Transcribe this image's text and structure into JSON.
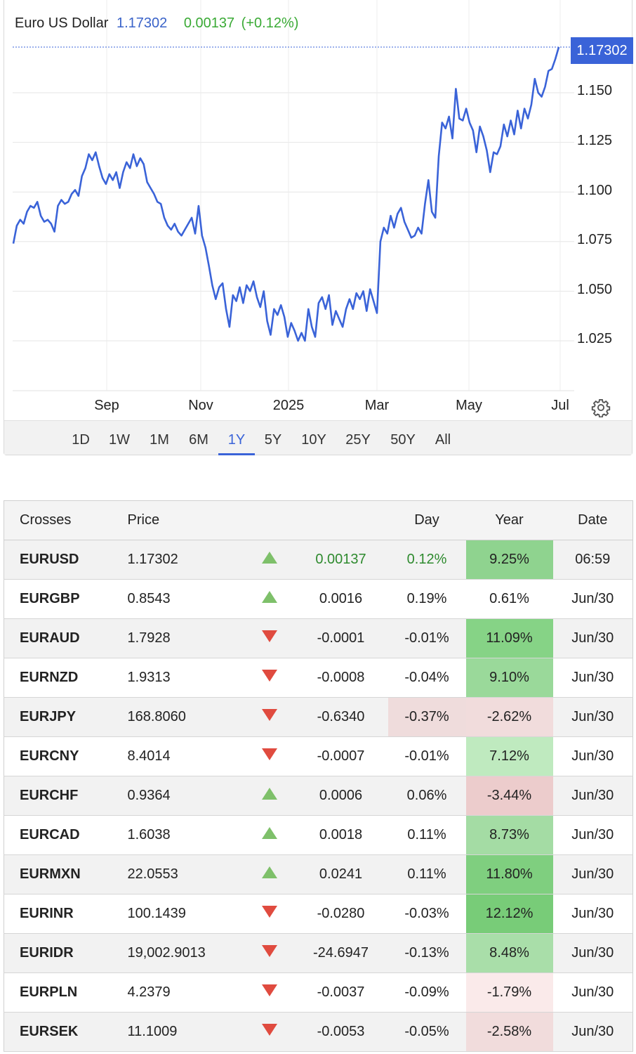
{
  "chart": {
    "name": "Euro US Dollar",
    "last": "1.17302",
    "change": "0.00137",
    "change_pct": "(+0.12%)",
    "price_tag": "1.17302",
    "accent": "#3a63d8",
    "positive_color": "#3aaa35"
  },
  "chart_data": {
    "type": "line",
    "title": "Euro US Dollar",
    "y_ticks": [
      "1.150",
      "1.125",
      "1.100",
      "1.075",
      "1.050",
      "1.025"
    ],
    "x_ticks": [
      "Sep",
      "Nov",
      "2025",
      "Mar",
      "May",
      "Jul"
    ],
    "ylim": [
      1.0,
      1.1775
    ],
    "grid": true,
    "series": [
      {
        "name": "Euro US Dollar",
        "color": "#3a63d8",
        "values": [
          1.074,
          1.083,
          1.086,
          1.084,
          1.09,
          1.093,
          1.092,
          1.095,
          1.088,
          1.085,
          1.086,
          1.084,
          1.08,
          1.093,
          1.096,
          1.094,
          1.095,
          1.099,
          1.101,
          1.098,
          1.108,
          1.112,
          1.119,
          1.116,
          1.12,
          1.113,
          1.107,
          1.104,
          1.109,
          1.106,
          1.11,
          1.102,
          1.11,
          1.115,
          1.112,
          1.119,
          1.113,
          1.117,
          1.114,
          1.105,
          1.102,
          1.099,
          1.095,
          1.094,
          1.087,
          1.083,
          1.081,
          1.084,
          1.08,
          1.078,
          1.081,
          1.084,
          1.087,
          1.079,
          1.093,
          1.078,
          1.072,
          1.063,
          1.053,
          1.046,
          1.052,
          1.054,
          1.041,
          1.032,
          1.048,
          1.045,
          1.052,
          1.044,
          1.053,
          1.05,
          1.055,
          1.047,
          1.042,
          1.05,
          1.035,
          1.028,
          1.041,
          1.038,
          1.043,
          1.037,
          1.027,
          1.034,
          1.03,
          1.025,
          1.029,
          1.025,
          1.041,
          1.032,
          1.027,
          1.044,
          1.047,
          1.041,
          1.048,
          1.033,
          1.04,
          1.036,
          1.032,
          1.041,
          1.046,
          1.041,
          1.049,
          1.046,
          1.05,
          1.04,
          1.051,
          1.045,
          1.039,
          1.075,
          1.082,
          1.079,
          1.088,
          1.082,
          1.089,
          1.092,
          1.085,
          1.081,
          1.077,
          1.078,
          1.082,
          1.079,
          1.094,
          1.106,
          1.09,
          1.087,
          1.118,
          1.135,
          1.132,
          1.138,
          1.127,
          1.152,
          1.137,
          1.136,
          1.142,
          1.135,
          1.131,
          1.12,
          1.133,
          1.128,
          1.121,
          1.11,
          1.12,
          1.119,
          1.123,
          1.134,
          1.128,
          1.136,
          1.129,
          1.141,
          1.132,
          1.142,
          1.137,
          1.144,
          1.157,
          1.15,
          1.148,
          1.153,
          1.161,
          1.162,
          1.167,
          1.173
        ]
      }
    ]
  },
  "ranges": {
    "items": [
      "1D",
      "1W",
      "1M",
      "6M",
      "1Y",
      "5Y",
      "10Y",
      "25Y",
      "50Y",
      "All"
    ],
    "active": "1Y"
  },
  "table": {
    "headers": {
      "symbol": "Crosses",
      "price": "Price",
      "day": "Day",
      "year": "Year",
      "date": "Date"
    },
    "rows": [
      {
        "symbol": "EURUSD",
        "price": "1.17302",
        "dir": "up",
        "change": "0.00137",
        "day_pct": "0.12%",
        "year_pct": "9.25%",
        "date": "06:59",
        "year_bg": "#8fd38f",
        "day_bg": "",
        "highlight": true
      },
      {
        "symbol": "EURGBP",
        "price": "0.8543",
        "dir": "up",
        "change": "0.0016",
        "day_pct": "0.19%",
        "year_pct": "0.61%",
        "date": "Jun/30",
        "year_bg": "",
        "day_bg": ""
      },
      {
        "symbol": "EURAUD",
        "price": "1.7928",
        "dir": "down",
        "change": "-0.0001",
        "day_pct": "-0.01%",
        "year_pct": "11.09%",
        "date": "Jun/30",
        "year_bg": "#86d386",
        "day_bg": ""
      },
      {
        "symbol": "EURNZD",
        "price": "1.9313",
        "dir": "down",
        "change": "-0.0008",
        "day_pct": "-0.04%",
        "year_pct": "9.10%",
        "date": "Jun/30",
        "year_bg": "#9ad99a",
        "day_bg": ""
      },
      {
        "symbol": "EURJPY",
        "price": "168.8060",
        "dir": "down",
        "change": "-0.6340",
        "day_pct": "-0.37%",
        "year_pct": "-2.62%",
        "date": "Jun/30",
        "year_bg": "#f1dcdc",
        "day_bg": "#efdcdc"
      },
      {
        "symbol": "EURCNY",
        "price": "8.4014",
        "dir": "down",
        "change": "-0.0007",
        "day_pct": "-0.01%",
        "year_pct": "7.12%",
        "date": "Jun/30",
        "year_bg": "#bfeabf",
        "day_bg": ""
      },
      {
        "symbol": "EURCHF",
        "price": "0.9364",
        "dir": "up",
        "change": "0.0006",
        "day_pct": "0.06%",
        "year_pct": "-3.44%",
        "date": "Jun/30",
        "year_bg": "#eccccc",
        "day_bg": ""
      },
      {
        "symbol": "EURCAD",
        "price": "1.6038",
        "dir": "up",
        "change": "0.0018",
        "day_pct": "0.11%",
        "year_pct": "8.73%",
        "date": "Jun/30",
        "year_bg": "#a4dca4",
        "day_bg": ""
      },
      {
        "symbol": "EURMXN",
        "price": "22.0553",
        "dir": "up",
        "change": "0.0241",
        "day_pct": "0.11%",
        "year_pct": "11.80%",
        "date": "Jun/30",
        "year_bg": "#7fcf7f",
        "day_bg": ""
      },
      {
        "symbol": "EURINR",
        "price": "100.1439",
        "dir": "down",
        "change": "-0.0280",
        "day_pct": "-0.03%",
        "year_pct": "12.12%",
        "date": "Jun/30",
        "year_bg": "#78cc78",
        "day_bg": ""
      },
      {
        "symbol": "EURIDR",
        "price": "19,002.9013",
        "dir": "down",
        "change": "-24.6947",
        "day_pct": "-0.13%",
        "year_pct": "8.48%",
        "date": "Jun/30",
        "year_bg": "#a9dea9",
        "day_bg": ""
      },
      {
        "symbol": "EURPLN",
        "price": "4.2379",
        "dir": "down",
        "change": "-0.0037",
        "day_pct": "-0.09%",
        "year_pct": "-1.79%",
        "date": "Jun/30",
        "year_bg": "#faeaea",
        "day_bg": ""
      },
      {
        "symbol": "EURSEK",
        "price": "11.1009",
        "dir": "down",
        "change": "-0.0053",
        "day_pct": "-0.05%",
        "year_pct": "-2.58%",
        "date": "Jun/30",
        "year_bg": "#f1dcdc",
        "day_bg": ""
      }
    ]
  }
}
